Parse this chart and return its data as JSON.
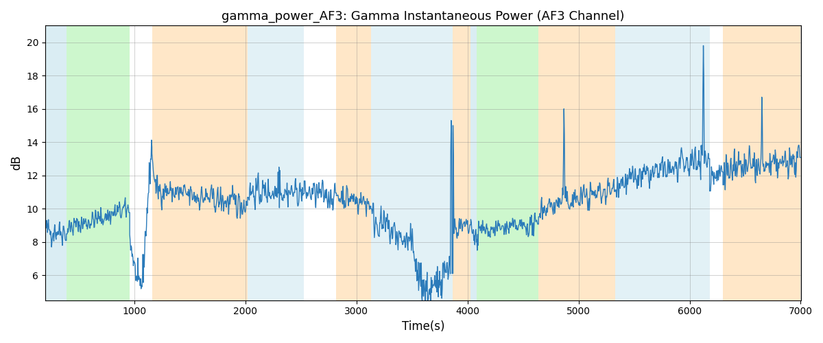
{
  "title": "gamma_power_AF3: Gamma Instantaneous Power (AF3 Channel)",
  "xlabel": "Time(s)",
  "ylabel": "dB",
  "xlim": [
    200,
    7000
  ],
  "ylim": [
    4.5,
    21
  ],
  "yticks": [
    6,
    8,
    10,
    12,
    14,
    16,
    18,
    20
  ],
  "xticks": [
    1000,
    2000,
    3000,
    4000,
    5000,
    6000,
    7000
  ],
  "line_color": "#2b7bba",
  "background_color": "#ffffff",
  "colored_bands": [
    {
      "xmin": 200,
      "xmax": 390,
      "color": "#add8e6",
      "alpha": 0.45
    },
    {
      "xmin": 390,
      "xmax": 960,
      "color": "#90ee90",
      "alpha": 0.45
    },
    {
      "xmin": 1160,
      "xmax": 2020,
      "color": "#ffd59b",
      "alpha": 0.55
    },
    {
      "xmin": 2020,
      "xmax": 2530,
      "color": "#add8e6",
      "alpha": 0.35
    },
    {
      "xmin": 2820,
      "xmax": 3130,
      "color": "#ffd59b",
      "alpha": 0.55
    },
    {
      "xmin": 3130,
      "xmax": 3870,
      "color": "#add8e6",
      "alpha": 0.35
    },
    {
      "xmin": 3870,
      "xmax": 4030,
      "color": "#ffd59b",
      "alpha": 0.55
    },
    {
      "xmin": 4030,
      "xmax": 4080,
      "color": "#add8e6",
      "alpha": 0.45
    },
    {
      "xmin": 4080,
      "xmax": 4640,
      "color": "#90ee90",
      "alpha": 0.45
    },
    {
      "xmin": 4640,
      "xmax": 5330,
      "color": "#ffd59b",
      "alpha": 0.55
    },
    {
      "xmin": 5330,
      "xmax": 6180,
      "color": "#add8e6",
      "alpha": 0.35
    },
    {
      "xmin": 6300,
      "xmax": 7000,
      "color": "#ffd59b",
      "alpha": 0.55
    }
  ],
  "seed": 42,
  "figsize": [
    12.0,
    5.0
  ],
  "dpi": 100
}
